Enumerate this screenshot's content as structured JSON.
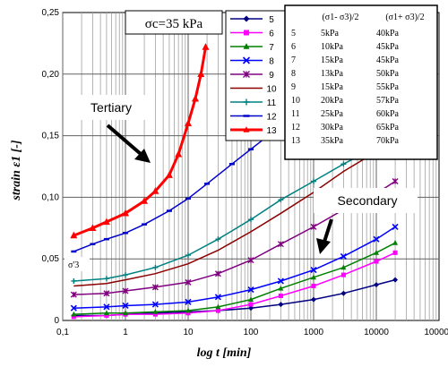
{
  "chart_data": {
    "type": "line",
    "xlabel": "log t [min]",
    "ylabel": "strain ε1 [-]",
    "xscale": "log",
    "xlim": [
      0.1,
      100000
    ],
    "ylim": [
      0,
      0.25
    ],
    "x_ticks": [
      "0,1",
      "1",
      "10",
      "100",
      "1000",
      "10000",
      "100000"
    ],
    "y_ticks": [
      "0",
      "0,05",
      "0,10",
      "0,15",
      "0,20",
      "0,25"
    ],
    "grid": true,
    "stress_label": "σc=35 kPa",
    "annotations": {
      "tertiary": "Tertiary",
      "secondary": "Secondary",
      "sigma3": "σ'3"
    },
    "table": {
      "headers": [
        "(σ1- σ3)/2",
        "(σ1+ σ3)/2"
      ],
      "rows": [
        [
          "5",
          "5kPa",
          "40kPa"
        ],
        [
          "6",
          "10kPa",
          "45kPa"
        ],
        [
          "7",
          "15kPa",
          "45kPa"
        ],
        [
          "8",
          "13kPa",
          "50kPa"
        ],
        [
          "9",
          "15kPa",
          "55kPa"
        ],
        [
          "10",
          "20kPa",
          "57kPa"
        ],
        [
          "11",
          "25kPa",
          "60kPa"
        ],
        [
          "12",
          "30kPa",
          "65kPa"
        ],
        [
          "13",
          "35kPa",
          "70kPa"
        ]
      ]
    },
    "series": [
      {
        "name": "5",
        "color": "#000080",
        "marker": "diamond",
        "x": [
          0.15,
          0.5,
          1,
          3,
          10,
          30,
          100,
          300,
          1000,
          3000,
          10000,
          20000
        ],
        "y": [
          0.004,
          0.004,
          0.005,
          0.006,
          0.007,
          0.008,
          0.01,
          0.013,
          0.017,
          0.022,
          0.029,
          0.033
        ]
      },
      {
        "name": "6",
        "color": "#ff00ff",
        "marker": "square",
        "x": [
          0.15,
          0.5,
          1,
          3,
          10,
          30,
          100,
          300,
          1000,
          3000,
          10000,
          20000
        ],
        "y": [
          0.003,
          0.004,
          0.005,
          0.005,
          0.006,
          0.008,
          0.013,
          0.02,
          0.028,
          0.037,
          0.048,
          0.055
        ]
      },
      {
        "name": "7",
        "color": "#008000",
        "marker": "triangle",
        "x": [
          0.15,
          0.5,
          1,
          3,
          10,
          30,
          100,
          300,
          1000,
          3000,
          10000,
          20000
        ],
        "y": [
          0.005,
          0.006,
          0.006,
          0.007,
          0.008,
          0.011,
          0.017,
          0.026,
          0.035,
          0.043,
          0.055,
          0.063
        ]
      },
      {
        "name": "8",
        "color": "#0000ff",
        "marker": "x",
        "x": [
          0.15,
          0.5,
          1,
          3,
          10,
          30,
          100,
          300,
          1000,
          3000,
          10000,
          20000
        ],
        "y": [
          0.01,
          0.011,
          0.012,
          0.013,
          0.015,
          0.019,
          0.025,
          0.032,
          0.041,
          0.052,
          0.066,
          0.076
        ]
      },
      {
        "name": "9",
        "color": "#800080",
        "marker": "star",
        "x": [
          0.15,
          0.5,
          1,
          3,
          10,
          30,
          100,
          300,
          1000,
          3000,
          10000,
          20000
        ],
        "y": [
          0.021,
          0.022,
          0.024,
          0.027,
          0.031,
          0.038,
          0.049,
          0.062,
          0.076,
          0.09,
          0.103,
          0.113
        ]
      },
      {
        "name": "10",
        "color": "#8b0000",
        "marker": "none",
        "x": [
          0.15,
          0.5,
          1,
          3,
          10,
          30,
          100,
          300,
          1000,
          3000,
          10000
        ],
        "y": [
          0.028,
          0.03,
          0.033,
          0.038,
          0.046,
          0.057,
          0.072,
          0.087,
          0.104,
          0.121,
          0.137
        ]
      },
      {
        "name": "11",
        "color": "#008080",
        "marker": "plus",
        "x": [
          0.15,
          0.5,
          1,
          3,
          10,
          30,
          100,
          300,
          1000,
          3000,
          6000
        ],
        "y": [
          0.032,
          0.034,
          0.037,
          0.043,
          0.053,
          0.066,
          0.082,
          0.098,
          0.113,
          0.127,
          0.135
        ]
      },
      {
        "name": "12",
        "color": "#0000cd",
        "marker": "dash",
        "x": [
          0.15,
          0.3,
          0.5,
          1,
          2,
          5,
          10,
          20,
          50,
          100,
          200,
          300
        ],
        "y": [
          0.056,
          0.062,
          0.066,
          0.071,
          0.078,
          0.089,
          0.099,
          0.111,
          0.127,
          0.139,
          0.151,
          0.157
        ]
      },
      {
        "name": "13",
        "color": "#ff0000",
        "marker": "triangle",
        "x": [
          0.15,
          0.3,
          0.5,
          1,
          2,
          3,
          5,
          7,
          10,
          13,
          16,
          19
        ],
        "y": [
          0.069,
          0.075,
          0.08,
          0.087,
          0.097,
          0.105,
          0.118,
          0.135,
          0.16,
          0.18,
          0.2,
          0.222
        ]
      }
    ]
  }
}
